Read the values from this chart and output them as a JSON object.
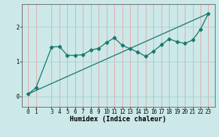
{
  "title": "",
  "xlabel": "Humidex (Indice chaleur)",
  "ylabel": "",
  "background_color": "#cce8e8",
  "line_color": "#1a7a6e",
  "grid_color_v": "#e8a0a0",
  "grid_color_h": "#a0d0d0",
  "x_values": [
    0,
    1,
    3,
    4,
    5,
    6,
    7,
    8,
    9,
    10,
    11,
    12,
    13,
    14,
    15,
    16,
    17,
    18,
    19,
    20,
    21,
    22,
    23
  ],
  "y_wavy": [
    0.07,
    0.25,
    1.42,
    1.43,
    1.18,
    1.18,
    1.2,
    1.33,
    1.38,
    1.55,
    1.68,
    1.47,
    1.37,
    1.27,
    1.15,
    1.3,
    1.48,
    1.65,
    1.57,
    1.52,
    1.62,
    1.93,
    2.38
  ],
  "ylim": [
    -0.3,
    2.65
  ],
  "xlim": [
    -0.8,
    23.8
  ],
  "yticks": [
    0,
    1,
    2
  ],
  "xticks": [
    0,
    1,
    3,
    4,
    5,
    6,
    7,
    8,
    9,
    10,
    11,
    12,
    13,
    14,
    15,
    16,
    17,
    18,
    19,
    20,
    21,
    22,
    23
  ],
  "marker": "D",
  "markersize": 2.5,
  "linewidth": 1.0,
  "xlabel_fontsize": 7,
  "tick_fontsize": 5.5
}
